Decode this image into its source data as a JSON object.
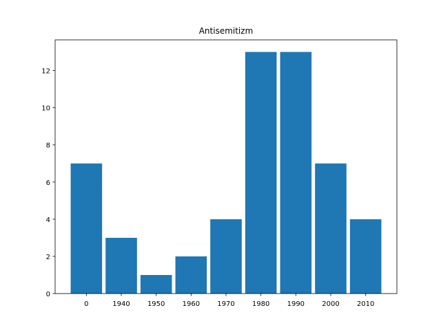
{
  "chart_data": {
    "type": "bar",
    "title": "Antisemitizm",
    "xlabel": "",
    "ylabel": "",
    "categories": [
      "0",
      "1940",
      "1950",
      "1960",
      "1970",
      "1980",
      "1990",
      "2000",
      "2010"
    ],
    "values": [
      7,
      3,
      1,
      2,
      4,
      13,
      13,
      7,
      4
    ],
    "ylim": [
      0,
      13.65
    ],
    "yticks": [
      0,
      2,
      4,
      6,
      8,
      10,
      12
    ],
    "grid": false,
    "bar_color": "#1f77b4"
  }
}
